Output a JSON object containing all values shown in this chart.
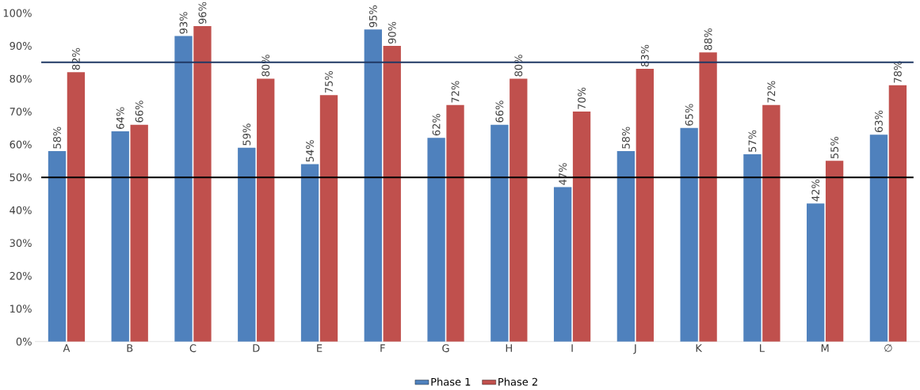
{
  "chart_data": {
    "type": "bar",
    "categories": [
      "A",
      "B",
      "C",
      "D",
      "E",
      "F",
      "G",
      "H",
      "I",
      "J",
      "K",
      "L",
      "M",
      "∅"
    ],
    "series": [
      {
        "name": "Phase 1",
        "color": "#4f81bd",
        "values": [
          58,
          64,
          93,
          59,
          54,
          95,
          62,
          66,
          47,
          58,
          65,
          57,
          42,
          63
        ],
        "value_labels": [
          "58%",
          "64%",
          "93%",
          "59%",
          "54%",
          "95%",
          "62%",
          "66%",
          "47%",
          "58%",
          "65%",
          "57%",
          "42%",
          "63%"
        ]
      },
      {
        "name": "Phase 2",
        "color": "#c0504d",
        "values": [
          82,
          66,
          96,
          80,
          75,
          90,
          72,
          80,
          70,
          83,
          88,
          72,
          55,
          78
        ],
        "value_labels": [
          "82%",
          "66%",
          "96%",
          "80%",
          "75%",
          "90%",
          "72%",
          "80%",
          "70%",
          "83%",
          "88%",
          "72%",
          "55%",
          "78%"
        ]
      }
    ],
    "ylim": [
      0,
      100
    ],
    "yticks": [
      {
        "value": 0,
        "label": "0%"
      },
      {
        "value": 10,
        "label": "10%"
      },
      {
        "value": 20,
        "label": "20%"
      },
      {
        "value": 30,
        "label": "30%"
      },
      {
        "value": 40,
        "label": "40%"
      },
      {
        "value": 50,
        "label": "50%"
      },
      {
        "value": 60,
        "label": "60%"
      },
      {
        "value": 70,
        "label": "70%"
      },
      {
        "value": 80,
        "label": "80%"
      },
      {
        "value": 90,
        "label": "90%"
      },
      {
        "value": 100,
        "label": "100%"
      }
    ],
    "ref_lines": [
      {
        "axis": "y",
        "value": 85,
        "color": "#1f3864"
      },
      {
        "axis": "y",
        "value": 50,
        "color": "#000000"
      }
    ],
    "grid": false,
    "legend": "bottom"
  }
}
